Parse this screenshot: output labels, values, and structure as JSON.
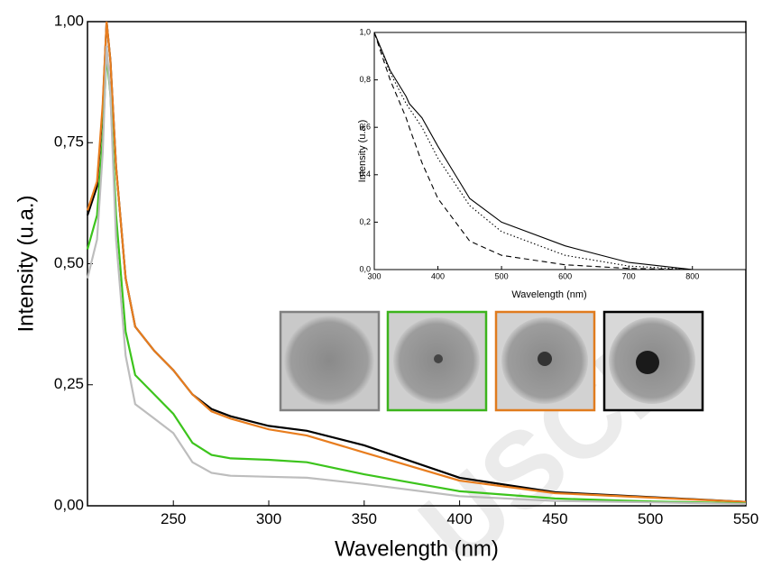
{
  "chart_data": [
    {
      "type": "line",
      "x_label": "Wavelength (nm)",
      "y_label": "Intensity (u.a.)",
      "x": [
        205,
        210,
        213,
        215,
        217,
        220,
        225,
        230,
        240,
        250,
        260,
        270,
        280,
        300,
        320,
        350,
        400,
        450,
        500,
        550
      ],
      "series": [
        {
          "color": "#000000",
          "values": [
            0.6,
            0.66,
            0.82,
            1.0,
            0.92,
            0.7,
            0.47,
            0.37,
            0.32,
            0.28,
            0.23,
            0.2,
            0.185,
            0.165,
            0.155,
            0.125,
            0.058,
            0.028,
            0.018,
            0.008
          ]
        },
        {
          "color": "#e87d1e",
          "values": [
            0.61,
            0.67,
            0.83,
            1.0,
            0.92,
            0.7,
            0.47,
            0.37,
            0.32,
            0.28,
            0.23,
            0.195,
            0.18,
            0.158,
            0.145,
            0.11,
            0.052,
            0.026,
            0.017,
            0.008
          ]
        },
        {
          "color": "#3cc41c",
          "values": [
            0.53,
            0.6,
            0.76,
            0.93,
            0.85,
            0.6,
            0.36,
            0.27,
            0.23,
            0.19,
            0.13,
            0.105,
            0.098,
            0.095,
            0.09,
            0.065,
            0.03,
            0.015,
            0.009,
            0.005
          ]
        },
        {
          "color": "#bdbdbd",
          "values": [
            0.47,
            0.55,
            0.73,
            0.95,
            0.85,
            0.55,
            0.31,
            0.21,
            0.18,
            0.15,
            0.09,
            0.068,
            0.062,
            0.06,
            0.058,
            0.045,
            0.02,
            0.01,
            0.007,
            0.004
          ]
        }
      ],
      "xlim": [
        205,
        550
      ],
      "xticks": [
        250,
        300,
        350,
        400,
        450,
        500,
        550
      ],
      "ylim": [
        0,
        1
      ],
      "yticks": [
        {
          "value": 0,
          "label": "0,00"
        },
        {
          "value": 0.25,
          "label": "0,25"
        },
        {
          "value": 0.5,
          "label": "0,50"
        },
        {
          "value": 0.75,
          "label": "0,75"
        },
        {
          "value": 1,
          "label": "1,00"
        }
      ],
      "watermark": "USCR"
    },
    {
      "type": "line",
      "x_label": "Wavelength (nm)",
      "y_label": "Intensity (u.a.)",
      "x": [
        300,
        325,
        350,
        355,
        375,
        400,
        450,
        500,
        600,
        700,
        800
      ],
      "series": [
        {
          "color": "#000000",
          "dash": "solid",
          "values": [
            1.0,
            0.84,
            0.73,
            0.7,
            0.64,
            0.52,
            0.3,
            0.2,
            0.1,
            0.03,
            0.0
          ]
        },
        {
          "color": "#000000",
          "dash": "dotted",
          "values": [
            1.0,
            0.83,
            0.7,
            0.68,
            0.6,
            0.47,
            0.27,
            0.16,
            0.06,
            0.015,
            0.0
          ]
        },
        {
          "color": "#000000",
          "dash": "dashed",
          "values": [
            1.0,
            0.8,
            0.64,
            0.6,
            0.45,
            0.3,
            0.12,
            0.06,
            0.02,
            0.005,
            0.0
          ]
        }
      ],
      "xlim": [
        300,
        850
      ],
      "xticks": [
        300,
        400,
        500,
        600,
        700,
        800
      ],
      "ylim": [
        0,
        1
      ],
      "yticks": [
        {
          "value": 0,
          "label": "0,0"
        },
        {
          "value": 0.2,
          "label": "0,2"
        },
        {
          "value": 0.4,
          "label": "0,4"
        },
        {
          "value": 0.6,
          "label": "0,6"
        },
        {
          "value": 0.8,
          "label": "0,8"
        },
        {
          "value": 1,
          "label": "1,0"
        }
      ]
    }
  ]
}
